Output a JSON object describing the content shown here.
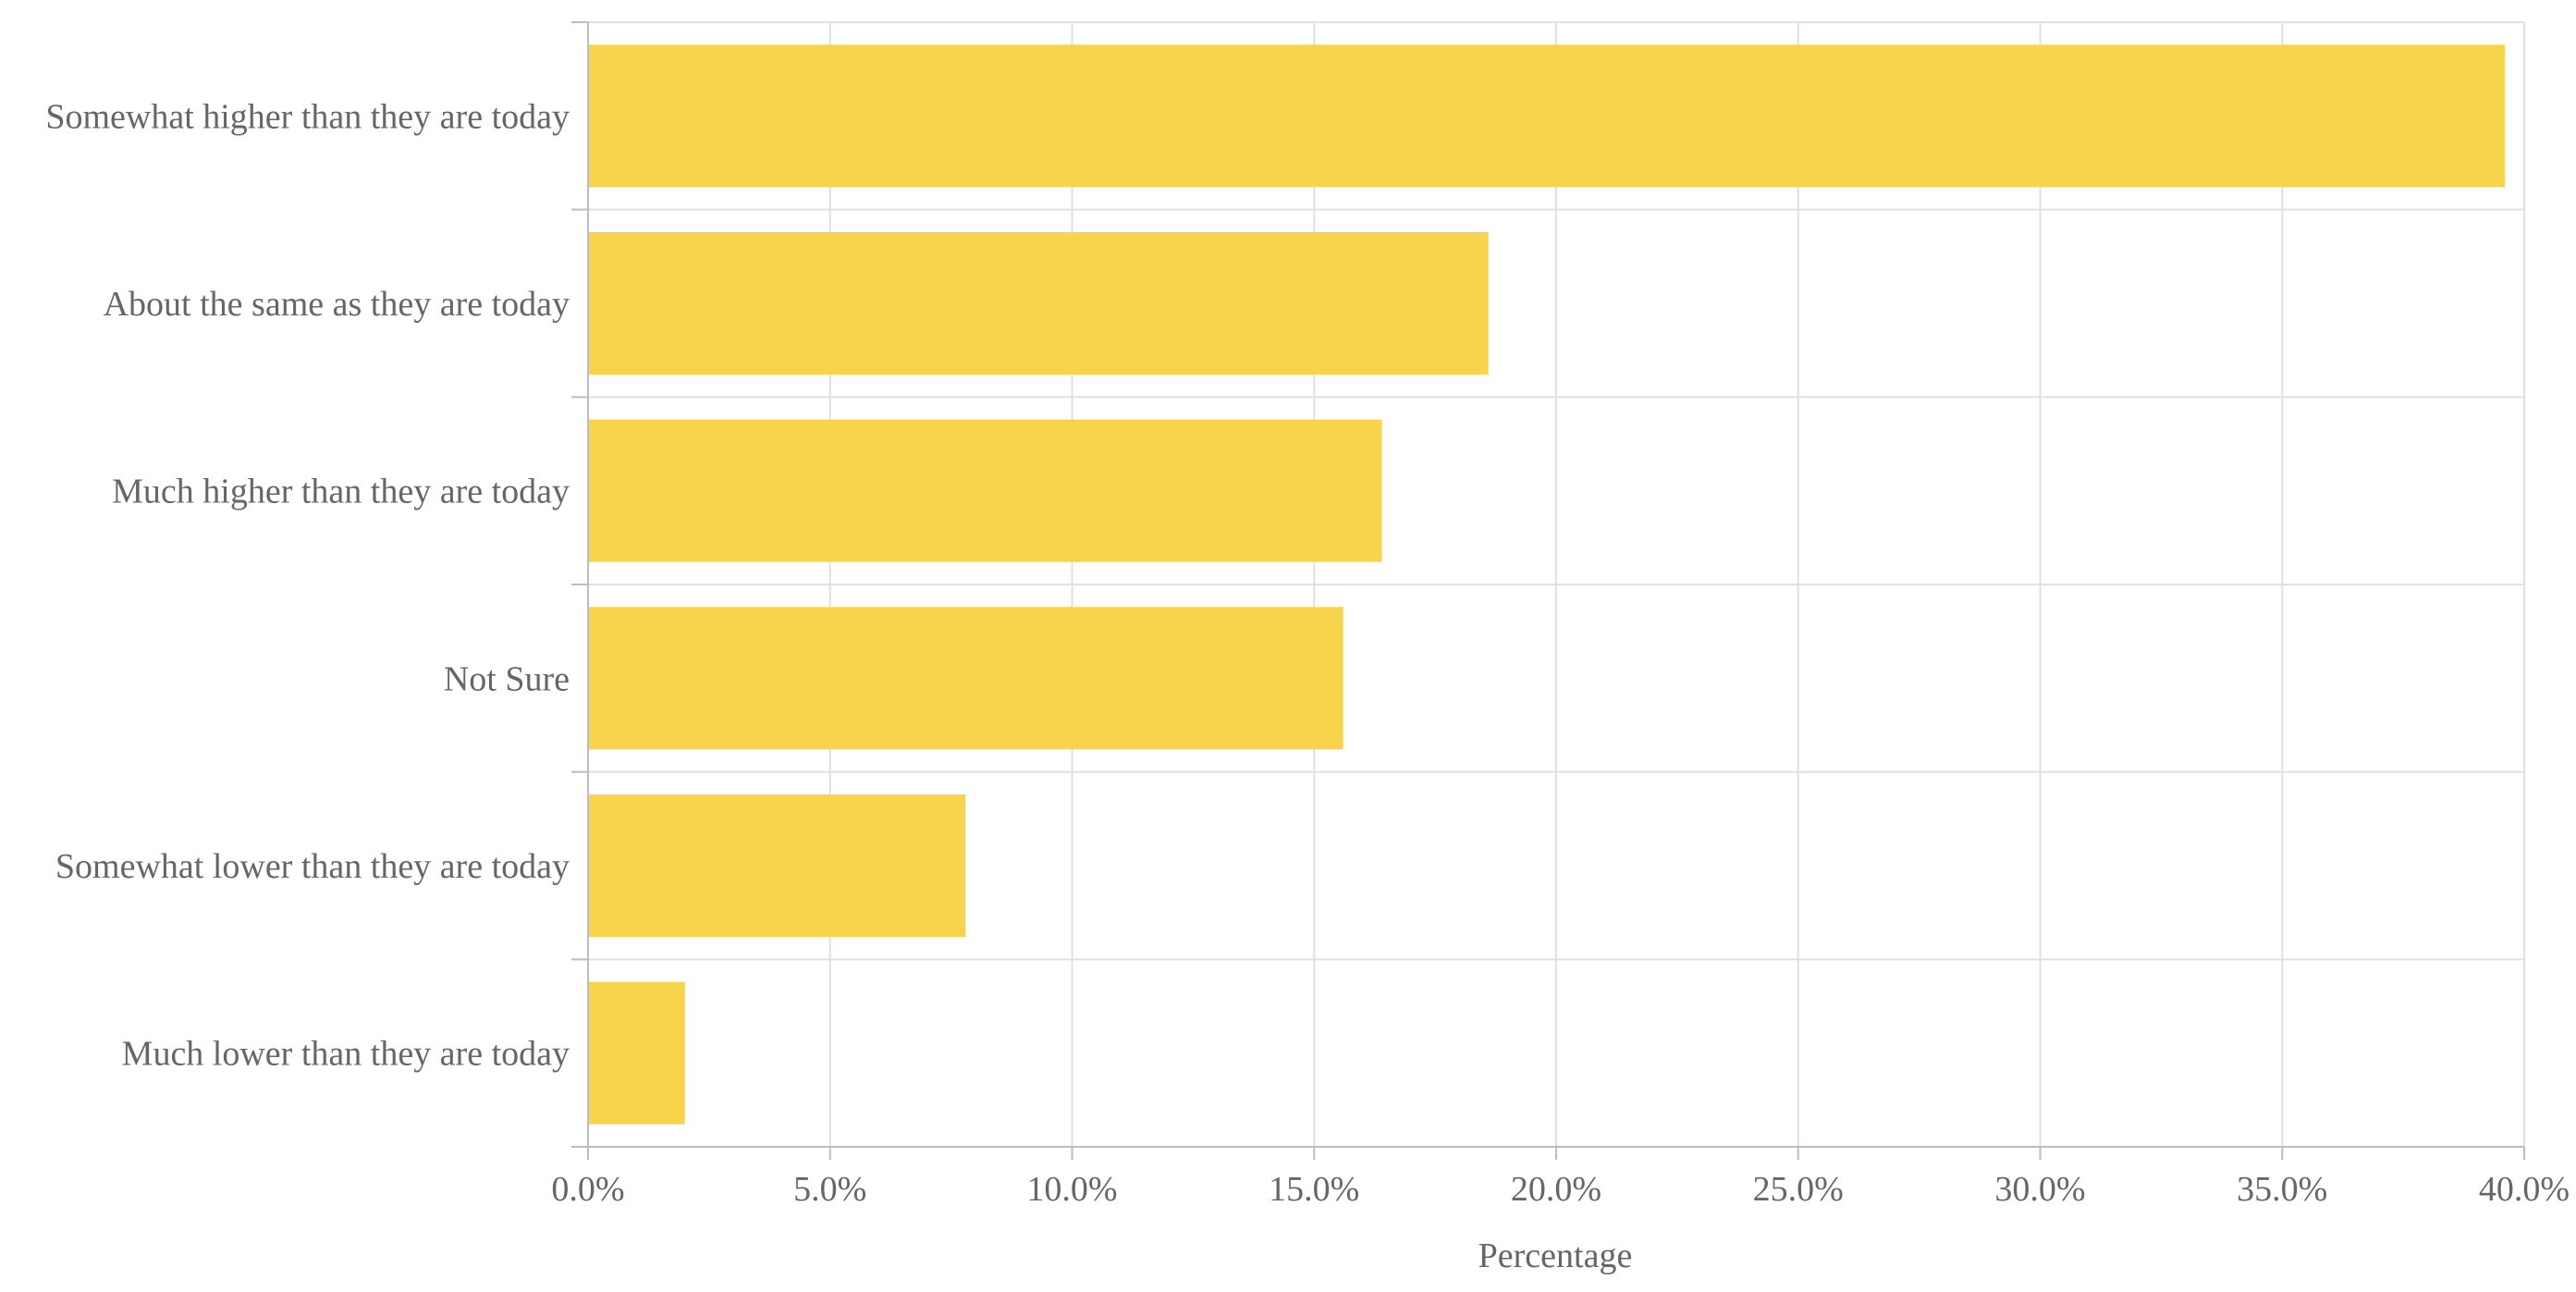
{
  "chart_data": {
    "type": "bar",
    "orientation": "horizontal",
    "title": "",
    "xlabel": "Percentage",
    "ylabel": "",
    "categories": [
      "Somewhat higher than they are today",
      "About the same as they are today",
      "Much higher than they are today",
      "Not Sure",
      "Somewhat lower than they are today",
      "Much lower than they are today"
    ],
    "values": [
      39.6,
      18.6,
      16.4,
      15.6,
      7.8,
      2.0
    ],
    "xlim": [
      0,
      40
    ],
    "x_ticks": [
      "0.0%",
      "5.0%",
      "10.0%",
      "15.0%",
      "20.0%",
      "25.0%",
      "30.0%",
      "35.0%",
      "40.0%"
    ],
    "grid": true,
    "legend": "none",
    "colors": {
      "bar": "#F7D44C",
      "grid": "#E0E0E0",
      "axis": "#BDBDBD",
      "text": "#666666"
    }
  }
}
